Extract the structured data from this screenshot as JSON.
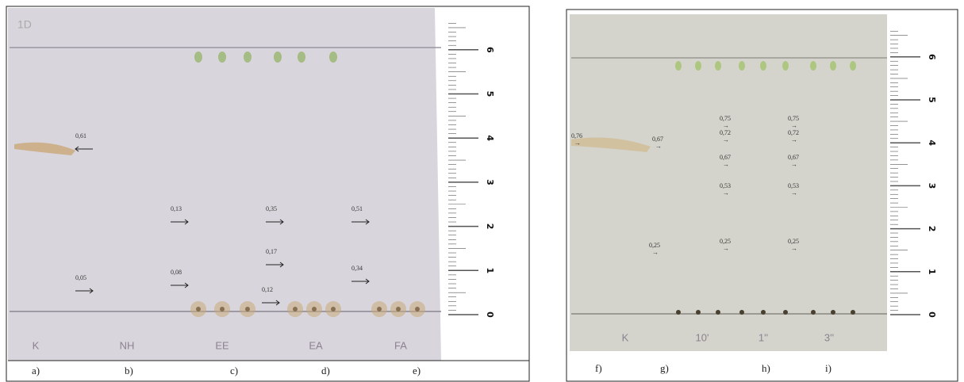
{
  "left": {
    "plate_mark": "1D",
    "rf_labels": [
      "0,61",
      "0,05",
      "0,13",
      "0,08",
      "0,35",
      "0,17",
      "0,12",
      "0,51",
      "0,34"
    ],
    "lane_labels": [
      "K",
      "NH",
      "EE",
      "EA",
      "FA"
    ],
    "ruler": [
      0,
      1,
      2,
      3,
      4,
      5,
      6
    ],
    "panels": [
      "a)",
      "b)",
      "c)",
      "d)",
      "e)"
    ]
  },
  "right": {
    "rf_labels": [
      "0,76",
      "0,67",
      "0,25",
      "0,75",
      "0,72",
      "0,67",
      "0,53",
      "0,25",
      "0,75",
      "0,72",
      "0,67",
      "0,53",
      "0,25"
    ],
    "lane_labels": [
      "K",
      "10'",
      "1''",
      "3''"
    ],
    "ruler": [
      0,
      1,
      2,
      3,
      4,
      5,
      6
    ],
    "panels": [
      "f)",
      "g)",
      "h)",
      "i)"
    ]
  }
}
